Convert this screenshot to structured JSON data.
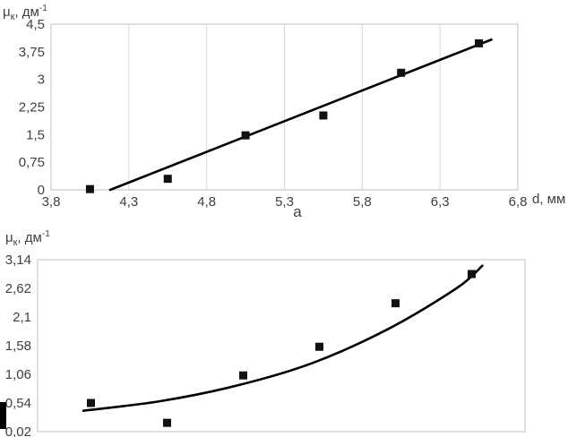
{
  "colors": {
    "trend": "#000000",
    "marker": "#111111",
    "grid": "#d9d9d9",
    "border": "#bfbfbf",
    "text": "#404040"
  },
  "chart_data": [
    {
      "type": "scatter",
      "caption": "а",
      "y_axis_title": {
        "base": "μ",
        "sub": "к",
        "unit": ", дм",
        "exp": "-1"
      },
      "x_axis_title": "d, мм",
      "xlim": [
        3.8,
        6.8
      ],
      "ylim": [
        0,
        4.5
      ],
      "grid_x": true,
      "x_ticks": [
        {
          "v": 3.8,
          "label": "3,8"
        },
        {
          "v": 4.3,
          "label": "4,3"
        },
        {
          "v": 4.8,
          "label": "4,8"
        },
        {
          "v": 5.3,
          "label": "5,3"
        },
        {
          "v": 5.8,
          "label": "5,8"
        },
        {
          "v": 6.3,
          "label": "6,3"
        },
        {
          "v": 6.8,
          "label": "6,8"
        }
      ],
      "y_ticks": [
        {
          "v": 0,
          "label": "0"
        },
        {
          "v": 0.75,
          "label": "0,75"
        },
        {
          "v": 1.5,
          "label": "1,5"
        },
        {
          "v": 2.25,
          "label": "2,25"
        },
        {
          "v": 3,
          "label": "3"
        },
        {
          "v": 3.75,
          "label": "3,75"
        },
        {
          "v": 4.5,
          "label": "4,5"
        }
      ],
      "points": [
        [
          4.05,
          0.02
        ],
        [
          4.55,
          0.3
        ],
        [
          5.05,
          1.48
        ],
        [
          5.55,
          2.02
        ],
        [
          6.05,
          3.18
        ],
        [
          6.55,
          3.98
        ]
      ],
      "trend": {
        "kind": "line",
        "from": [
          4.18,
          0.0
        ],
        "to": [
          6.63,
          4.08
        ]
      }
    },
    {
      "type": "scatter",
      "caption": "",
      "y_axis_title": {
        "base": "μ",
        "sub": "к",
        "unit": ", дм",
        "exp": "-1"
      },
      "x_axis_title": "",
      "xlim": [
        3.7,
        6.9
      ],
      "ylim": [
        0.02,
        3.14
      ],
      "grid_x": false,
      "x_ticks": [],
      "y_ticks": [
        {
          "v": 0.02,
          "label": "0,02"
        },
        {
          "v": 0.54,
          "label": "0,54"
        },
        {
          "v": 1.06,
          "label": "1,06"
        },
        {
          "v": 1.58,
          "label": "1,58"
        },
        {
          "v": 2.1,
          "label": "2,1"
        },
        {
          "v": 2.62,
          "label": "2,62"
        },
        {
          "v": 3.14,
          "label": "3,14"
        }
      ],
      "points": [
        [
          4.05,
          0.54
        ],
        [
          4.55,
          0.18
        ],
        [
          5.05,
          1.04
        ],
        [
          5.55,
          1.56
        ],
        [
          6.05,
          2.35
        ],
        [
          6.55,
          2.88
        ]
      ],
      "trend": {
        "kind": "curve",
        "samples": [
          [
            4.0,
            0.4
          ],
          [
            4.5,
            0.57
          ],
          [
            5.0,
            0.85
          ],
          [
            5.5,
            1.26
          ],
          [
            6.0,
            1.88
          ],
          [
            6.45,
            2.62
          ],
          [
            6.62,
            3.03
          ]
        ]
      }
    }
  ]
}
